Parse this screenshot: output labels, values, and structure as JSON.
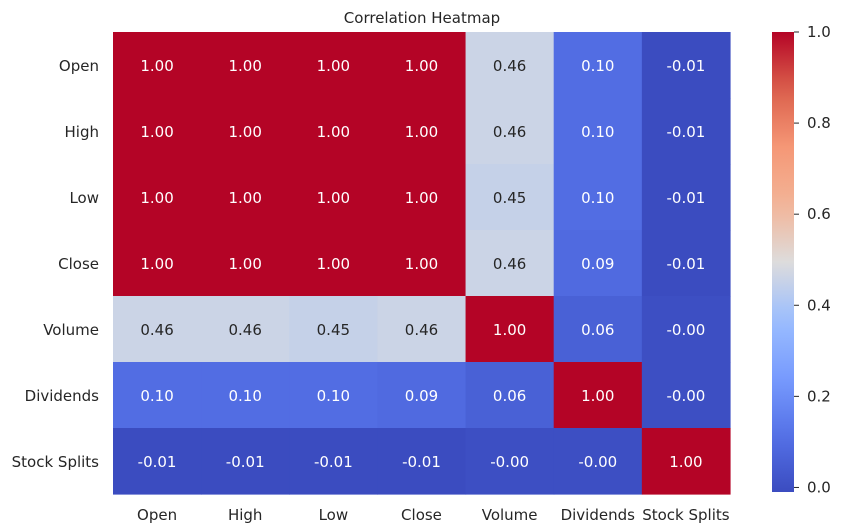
{
  "chart_data": {
    "type": "heatmap",
    "title": "Correlation Heatmap",
    "xlabel": "",
    "ylabel": "",
    "x_labels": [
      "Open",
      "High",
      "Low",
      "Close",
      "Volume",
      "Dividends",
      "Stock Splits"
    ],
    "y_labels": [
      "Open",
      "High",
      "Low",
      "Close",
      "Volume",
      "Dividends",
      "Stock Splits"
    ],
    "values": [
      [
        1.0,
        1.0,
        1.0,
        1.0,
        0.46,
        0.1,
        -0.01
      ],
      [
        1.0,
        1.0,
        1.0,
        1.0,
        0.46,
        0.1,
        -0.01
      ],
      [
        1.0,
        1.0,
        1.0,
        1.0,
        0.45,
        0.1,
        -0.01
      ],
      [
        1.0,
        1.0,
        1.0,
        1.0,
        0.46,
        0.09,
        -0.01
      ],
      [
        0.46,
        0.46,
        0.45,
        0.46,
        1.0,
        0.06,
        -0.0
      ],
      [
        0.1,
        0.1,
        0.1,
        0.09,
        0.06,
        1.0,
        -0.0
      ],
      [
        -0.01,
        -0.01,
        -0.01,
        -0.01,
        -0.0,
        -0.0,
        1.0
      ]
    ],
    "cell_labels": [
      [
        "1.00",
        "1.00",
        "1.00",
        "1.00",
        "0.46",
        "0.10",
        "-0.01"
      ],
      [
        "1.00",
        "1.00",
        "1.00",
        "1.00",
        "0.46",
        "0.10",
        "-0.01"
      ],
      [
        "1.00",
        "1.00",
        "1.00",
        "1.00",
        "0.45",
        "0.10",
        "-0.01"
      ],
      [
        "1.00",
        "1.00",
        "1.00",
        "1.00",
        "0.46",
        "0.09",
        "-0.01"
      ],
      [
        "0.46",
        "0.46",
        "0.45",
        "0.46",
        "1.00",
        "0.06",
        "-0.00"
      ],
      [
        "0.10",
        "0.10",
        "0.10",
        "0.09",
        "0.06",
        "1.00",
        "-0.00"
      ],
      [
        "-0.01",
        "-0.01",
        "-0.01",
        "-0.01",
        "-0.00",
        "-0.00",
        "1.00"
      ]
    ],
    "colormap": "coolwarm",
    "vmin": -0.01,
    "vmax": 1.0,
    "colorbar": {
      "ticks": [
        0.0,
        0.2,
        0.4,
        0.6,
        0.8,
        1.0
      ],
      "tick_labels": [
        "0.0",
        "0.2",
        "0.4",
        "0.6",
        "0.8",
        "1.0"
      ]
    },
    "grid": false
  }
}
